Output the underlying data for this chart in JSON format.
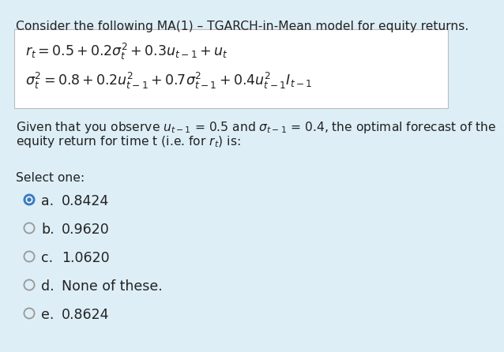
{
  "bg_color": "#ddeef6",
  "box_bg_color": "#ffffff",
  "title_text": "Consider the following MA(1) – TGARCH-in-Mean model for equity returns.",
  "eq1": "$r_t = 0.5 + 0.2\\sigma_t^2 + 0.3u_{t-1} + u_t$",
  "eq2": "$\\sigma_t^2 = 0.8 + 0.2u_{t-1}^2 + 0.7\\sigma_{t-1}^2 + 0.4u_{t-1}^2 I_{t-1}$",
  "given_line1": "Given that you observe $u_{t-1}$ = 0.5 and $\\sigma_{t-1}$ = 0.4, the optimal forecast of the",
  "given_line2": "equity return for time t (i.e. for $r_t$) is:",
  "select_text": "Select one:",
  "options": [
    {
      "label": "a.",
      "value": "0.8424",
      "selected": true
    },
    {
      "label": "b.",
      "value": "0.9620",
      "selected": false
    },
    {
      "label": "c.",
      "value": "1.0620",
      "selected": false
    },
    {
      "label": "d.",
      "value": "None of these.",
      "selected": false
    },
    {
      "label": "e.",
      "value": "0.8624",
      "selected": false
    }
  ],
  "selected_fill": "#3a7bbf",
  "selected_edge": "#3a7bbf",
  "unselected_fill": "#ddeef6",
  "unselected_edge": "#999999",
  "text_color": "#222222",
  "title_fontsize": 11.2,
  "eq_fontsize": 12.5,
  "body_fontsize": 11.2,
  "option_fontsize": 12.5,
  "select_fontsize": 11.2
}
